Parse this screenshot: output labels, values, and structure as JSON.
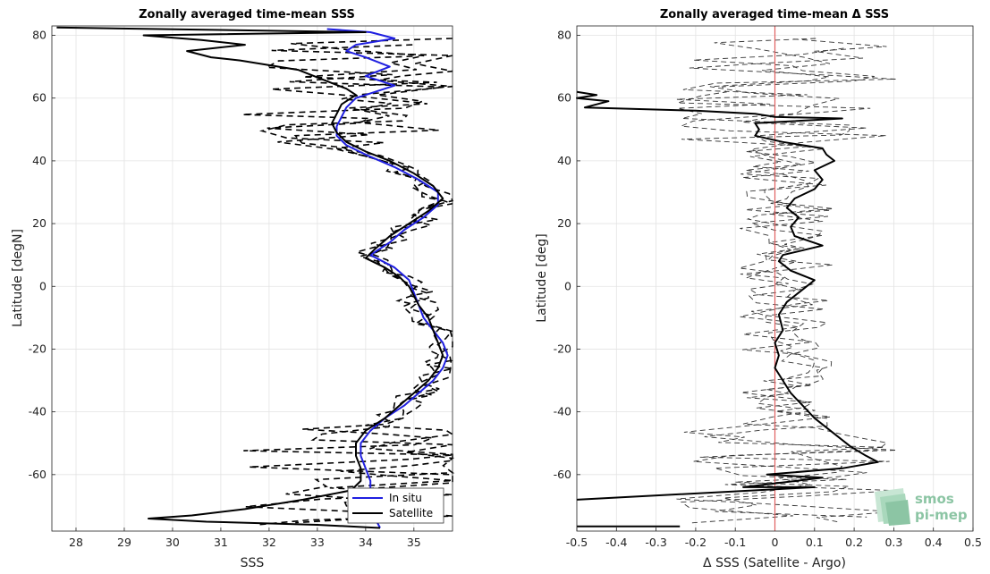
{
  "chart_data": [
    {
      "type": "line",
      "title": "Zonally averaged time-mean SSS",
      "xlabel": "SSS",
      "ylabel": "Latitude [degN]",
      "xlim": [
        27.5,
        35.8
      ],
      "ylim": [
        -78,
        83
      ],
      "x_ticks": [
        28,
        29,
        30,
        31,
        32,
        33,
        34,
        35
      ],
      "y_ticks": [
        -60,
        -40,
        -20,
        0,
        20,
        40,
        60,
        80
      ],
      "grid": true,
      "legend": {
        "placement": "bottom-right",
        "entries": [
          "In situ",
          "Satellite"
        ]
      },
      "series": [
        {
          "name": "In situ",
          "color": "#1f1fe0",
          "style": "solid",
          "points": [
            [
              33.2,
              82
            ],
            [
              34.1,
              81
            ],
            [
              34.6,
              79
            ],
            [
              33.8,
              77
            ],
            [
              33.6,
              75
            ],
            [
              34.0,
              73
            ],
            [
              34.5,
              70
            ],
            [
              34.0,
              67
            ],
            [
              34.6,
              64
            ],
            [
              34.2,
              62
            ],
            [
              33.8,
              60
            ],
            [
              33.6,
              57
            ],
            [
              33.5,
              54
            ],
            [
              33.4,
              51
            ],
            [
              33.4,
              48
            ],
            [
              33.6,
              45
            ],
            [
              34.0,
              42
            ],
            [
              34.6,
              38
            ],
            [
              35.1,
              34
            ],
            [
              35.5,
              30
            ],
            [
              35.5,
              26
            ],
            [
              35.2,
              22
            ],
            [
              34.8,
              18
            ],
            [
              34.5,
              14
            ],
            [
              34.1,
              10
            ],
            [
              34.6,
              6
            ],
            [
              34.9,
              2
            ],
            [
              35.0,
              -2
            ],
            [
              35.1,
              -6
            ],
            [
              35.2,
              -10
            ],
            [
              35.4,
              -14
            ],
            [
              35.6,
              -18
            ],
            [
              35.7,
              -22
            ],
            [
              35.6,
              -26
            ],
            [
              35.4,
              -30
            ],
            [
              35.1,
              -34
            ],
            [
              34.8,
              -38
            ],
            [
              34.4,
              -42
            ],
            [
              34.1,
              -46
            ],
            [
              33.9,
              -50
            ],
            [
              33.9,
              -54
            ],
            [
              34.0,
              -58
            ],
            [
              34.1,
              -62
            ],
            [
              34.1,
              -66
            ],
            [
              34.1,
              -70
            ],
            [
              34.2,
              -74
            ],
            [
              34.3,
              -77
            ]
          ]
        },
        {
          "name": "Satellite",
          "color": "#000000",
          "style": "solid",
          "points": [
            [
              27.6,
              82.5
            ],
            [
              34.0,
              81
            ],
            [
              29.4,
              80
            ],
            [
              30.6,
              78.5
            ],
            [
              31.5,
              77
            ],
            [
              30.3,
              75
            ],
            [
              30.8,
              73
            ],
            [
              31.4,
              72
            ],
            [
              32.6,
              69
            ],
            [
              33.1,
              66
            ],
            [
              33.6,
              63
            ],
            [
              33.8,
              61
            ],
            [
              33.5,
              58
            ],
            [
              33.4,
              55
            ],
            [
              33.3,
              52
            ],
            [
              33.4,
              49
            ],
            [
              33.6,
              46
            ],
            [
              34.0,
              43
            ],
            [
              34.5,
              40
            ],
            [
              35.0,
              36
            ],
            [
              35.4,
              32
            ],
            [
              35.6,
              28
            ],
            [
              35.3,
              24
            ],
            [
              34.9,
              20
            ],
            [
              34.5,
              16
            ],
            [
              34.2,
              12
            ],
            [
              34.0,
              9
            ],
            [
              34.4,
              6
            ],
            [
              34.7,
              3
            ],
            [
              34.9,
              0
            ],
            [
              35.0,
              -3
            ],
            [
              35.1,
              -6
            ],
            [
              35.3,
              -10
            ],
            [
              35.4,
              -14
            ],
            [
              35.5,
              -18
            ],
            [
              35.6,
              -22
            ],
            [
              35.5,
              -26
            ],
            [
              35.3,
              -30
            ],
            [
              35.0,
              -34
            ],
            [
              34.7,
              -38
            ],
            [
              34.4,
              -42
            ],
            [
              34.0,
              -46
            ],
            [
              33.8,
              -50
            ],
            [
              33.8,
              -54
            ],
            [
              33.9,
              -58
            ],
            [
              33.9,
              -62
            ],
            [
              33.7,
              -65
            ],
            [
              32.7,
              -68
            ],
            [
              31.5,
              -71
            ],
            [
              30.4,
              -73
            ],
            [
              29.5,
              -74
            ],
            [
              30.7,
              -75
            ],
            [
              33.0,
              -76
            ],
            [
              34.3,
              -77
            ]
          ]
        }
      ]
    },
    {
      "type": "line",
      "title": "Zonally averaged time-mean Δ SSS",
      "xlabel": "Δ SSS (Satellite - Argo)",
      "ylabel": "Latitude [deg]",
      "xlim": [
        -0.5,
        0.5
      ],
      "ylim": [
        -78,
        83
      ],
      "x_ticks": [
        -0.5,
        -0.4,
        -0.3,
        -0.2,
        -0.1,
        0,
        0.1,
        0.2,
        0.3,
        0.4,
        0.5
      ],
      "y_ticks": [
        -60,
        -40,
        -20,
        0,
        20,
        40,
        60,
        80
      ],
      "grid": true,
      "reference_line": {
        "x": 0,
        "color": "#e06060"
      },
      "series": [
        {
          "name": "",
          "color": "#000000",
          "style": "solid",
          "points": [
            [
              -0.5,
              62
            ],
            [
              -0.45,
              61
            ],
            [
              -0.5,
              60
            ],
            [
              -0.42,
              59
            ],
            [
              -0.48,
              57
            ],
            [
              -0.2,
              56
            ],
            [
              -0.05,
              55
            ],
            [
              0.0,
              54
            ],
            [
              0.17,
              53.5
            ],
            [
              -0.05,
              52
            ],
            [
              -0.04,
              50
            ],
            [
              -0.05,
              48
            ],
            [
              0.02,
              46
            ],
            [
              0.12,
              44
            ],
            [
              0.13,
              42
            ],
            [
              0.15,
              40
            ],
            [
              0.1,
              37
            ],
            [
              0.12,
              34
            ],
            [
              0.1,
              31
            ],
            [
              0.05,
              28
            ],
            [
              0.03,
              25
            ],
            [
              0.06,
              22
            ],
            [
              0.04,
              19
            ],
            [
              0.05,
              16
            ],
            [
              0.12,
              13
            ],
            [
              0.02,
              10
            ],
            [
              0.01,
              8
            ],
            [
              0.04,
              5
            ],
            [
              0.1,
              2
            ],
            [
              0.06,
              -2
            ],
            [
              0.03,
              -5
            ],
            [
              0.01,
              -9
            ],
            [
              0.02,
              -14
            ],
            [
              0.0,
              -18
            ],
            [
              0.01,
              -22
            ],
            [
              0.0,
              -26
            ],
            [
              0.02,
              -30
            ],
            [
              0.04,
              -34
            ],
            [
              0.07,
              -38
            ],
            [
              0.1,
              -42
            ],
            [
              0.13,
              -45
            ],
            [
              0.16,
              -48
            ],
            [
              0.19,
              -51
            ],
            [
              0.23,
              -54
            ],
            [
              0.26,
              -56
            ],
            [
              0.17,
              -58
            ],
            [
              -0.02,
              -60
            ],
            [
              0.12,
              -61
            ],
            [
              -0.08,
              -64
            ],
            [
              0.1,
              -64
            ],
            [
              -0.5,
              -68
            ]
          ]
        },
        {
          "name": "",
          "color": "#000000",
          "style": "solid",
          "points": [
            [
              -0.5,
              -76.5
            ],
            [
              -0.24,
              -76.5
            ]
          ]
        }
      ]
    }
  ],
  "logo": {
    "line1": "smos",
    "line2": "pi-mep"
  }
}
